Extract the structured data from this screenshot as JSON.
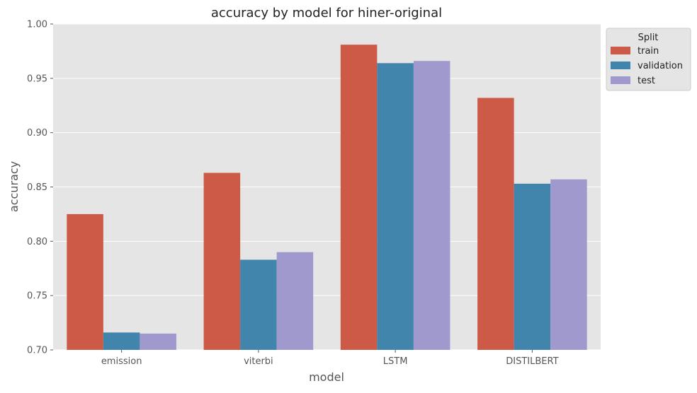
{
  "chart_data": {
    "type": "bar",
    "title": "accuracy by model for hiner-original",
    "xlabel": "model",
    "ylabel": "accuracy",
    "categories": [
      "emission",
      "viterbi",
      "LSTM",
      "DISTILBERT"
    ],
    "series": [
      {
        "name": "train",
        "color": "#cc5a47",
        "values": [
          0.825,
          0.863,
          0.981,
          0.932
        ]
      },
      {
        "name": "validation",
        "color": "#4285ac",
        "values": [
          0.716,
          0.783,
          0.964,
          0.853
        ]
      },
      {
        "name": "test",
        "color": "#a099cd",
        "values": [
          0.715,
          0.79,
          0.966,
          0.857
        ]
      }
    ],
    "ylim": [
      0.7,
      1.0
    ],
    "yticks": [
      "0.70",
      "0.75",
      "0.80",
      "0.85",
      "0.90",
      "0.95",
      "1.00"
    ],
    "grid": true,
    "legend": {
      "title": "Split",
      "placement": "outside-top-right"
    }
  }
}
